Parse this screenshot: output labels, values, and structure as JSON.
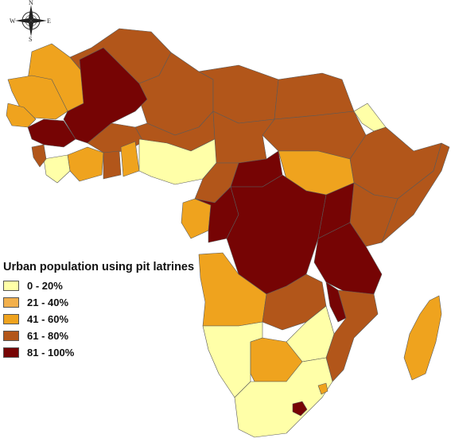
{
  "legend": {
    "title": "Urban population using pit latrines",
    "classes": [
      {
        "label": "0 - 20%",
        "color": "#ffffa8"
      },
      {
        "label": "21 - 40%",
        "color": "#f2b04c"
      },
      {
        "label": "41 - 60%",
        "color": "#efa31e"
      },
      {
        "label": "61 - 80%",
        "color": "#b2561a"
      },
      {
        "label": "81 - 100%",
        "color": "#760404"
      }
    ]
  },
  "compass": {
    "n": "N",
    "s": "S",
    "e": "E",
    "w": "W"
  },
  "colors": {
    "c0_20": "#ffffa8",
    "c21_40": "#f2b04c",
    "c41_60": "#efa31e",
    "c61_80": "#b2561a",
    "c81_100": "#760404"
  }
}
